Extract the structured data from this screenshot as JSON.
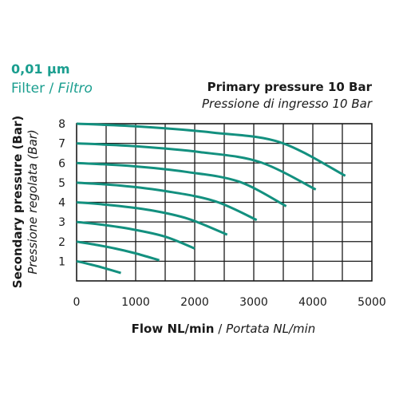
{
  "header": {
    "filter_rating": "0,01 µm",
    "filter_label": "Filter",
    "filter_sep": " / ",
    "filter_label_it": "Filtro",
    "primary_pressure": "Primary pressure 10 Bar",
    "primary_pressure_it": "Pressione di ingresso 10 Bar"
  },
  "colors": {
    "accent": "#1a9e8f",
    "curve": "#13907f",
    "grid": "#1a1a1a",
    "text": "#1a1a1a"
  },
  "chart_data": {
    "type": "line",
    "title": "",
    "xlabel": "Flow NL/min",
    "xlabel_sep": " / ",
    "xlabel_it": "Portata NL/min",
    "ylabel": "Secondary pressure (Bar)",
    "ylabel_it": "Pressione regolata (Bar)",
    "xlim": [
      0,
      5000
    ],
    "ylim": [
      0,
      8
    ],
    "x_ticks": [
      "0",
      "1000",
      "2000",
      "3000",
      "4000",
      "5000"
    ],
    "y_ticks": [
      "1",
      "2",
      "3",
      "4",
      "5",
      "6",
      "7",
      "8"
    ],
    "grid": true,
    "series": [
      {
        "x": [
          0,
          150,
          350,
          550,
          750
        ],
        "y": [
          1.0,
          0.9,
          0.75,
          0.58,
          0.4
        ]
      },
      {
        "x": [
          0,
          300,
          650,
          1000,
          1400
        ],
        "y": [
          2.0,
          1.85,
          1.65,
          1.4,
          1.05
        ]
      },
      {
        "x": [
          0,
          450,
          950,
          1500,
          2000
        ],
        "y": [
          3.0,
          2.85,
          2.62,
          2.25,
          1.65
        ]
      },
      {
        "x": [
          0,
          600,
          1250,
          1900,
          2550
        ],
        "y": [
          4.0,
          3.85,
          3.6,
          3.15,
          2.35
        ]
      },
      {
        "x": [
          0,
          750,
          1550,
          2350,
          3050
        ],
        "y": [
          5.0,
          4.85,
          4.55,
          4.05,
          3.1
        ]
      },
      {
        "x": [
          0,
          900,
          1850,
          2750,
          3550
        ],
        "y": [
          6.0,
          5.85,
          5.55,
          5.05,
          3.8
        ]
      },
      {
        "x": [
          0,
          1000,
          2100,
          3100,
          4050
        ],
        "y": [
          7.0,
          6.85,
          6.55,
          6.05,
          4.65
        ]
      },
      {
        "x": [
          0,
          1100,
          2300,
          3450,
          4550
        ],
        "y": [
          8.0,
          7.85,
          7.55,
          7.05,
          5.35
        ]
      }
    ]
  }
}
